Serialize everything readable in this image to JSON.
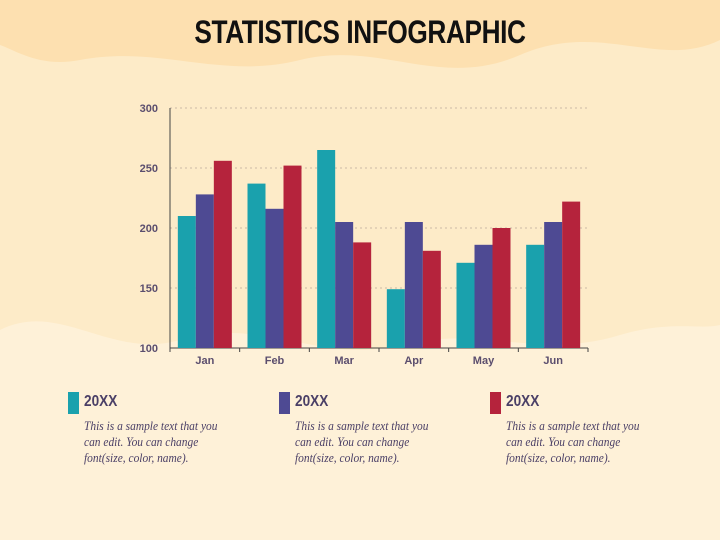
{
  "title": "STATISTICS INFOGRAPHIC",
  "colors": {
    "background": "#fdebc8",
    "series_teal": "#1aa1ad",
    "series_purple": "#4e4a93",
    "series_red": "#b5233c",
    "text": "#4a3f66"
  },
  "chart_data": {
    "type": "bar",
    "categories": [
      "Jan",
      "Feb",
      "Mar",
      "Apr",
      "May",
      "Jun"
    ],
    "series": [
      {
        "values": [
          210,
          237,
          265,
          149,
          171,
          186
        ]
      },
      {
        "values": [
          228,
          216,
          205,
          205,
          186,
          205
        ]
      },
      {
        "values": [
          256,
          252,
          188,
          181,
          200,
          222
        ]
      }
    ],
    "yticks": [
      "100",
      "150",
      "200",
      "250",
      "300"
    ],
    "ylim": [
      100,
      300
    ],
    "grid": true,
    "xlabel": "",
    "ylabel": ""
  },
  "legend": [
    {
      "label": "20XX",
      "text": "This is a sample text that you can edit. You can change font(size, color, name)."
    },
    {
      "label": "20XX",
      "text": "This is a sample text that you can edit. You can change font(size, color, name)."
    },
    {
      "label": "20XX",
      "text": "This is a sample text that you can edit. You can change font(size, color, name)."
    }
  ]
}
